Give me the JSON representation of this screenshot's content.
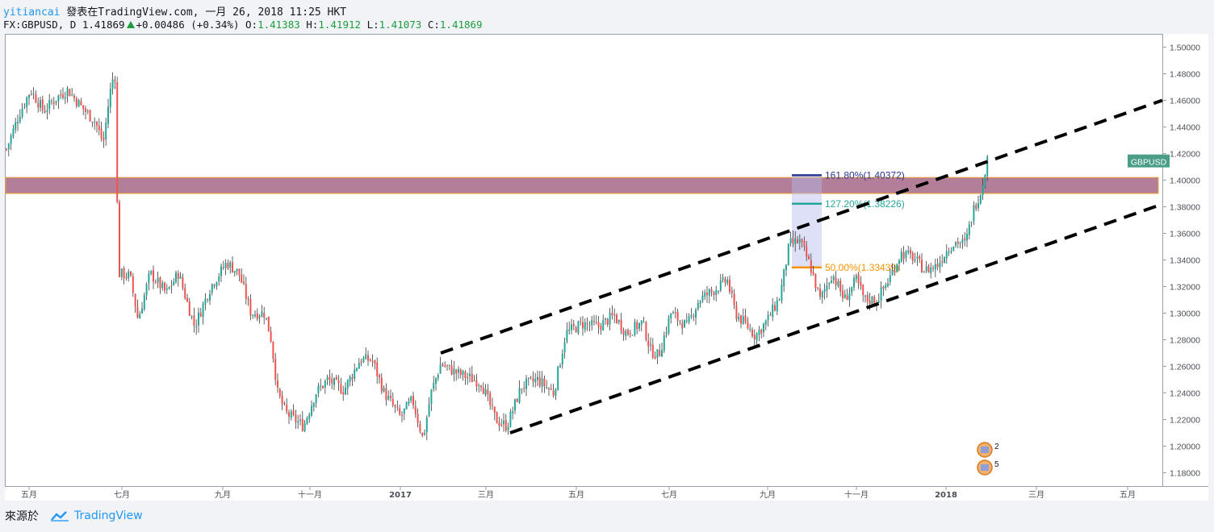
{
  "header": {
    "user": "yitiancai",
    "published": "發表在TradingView.com, 一月 26, 2018 11:25 HKT",
    "symbol": "FX:GBPUSD, D",
    "last": "1.41869",
    "change": "+0.00486 (+0.34%)",
    "open_label": "O:",
    "open": "1.41383",
    "high_label": "H:",
    "high": "1.41912",
    "low_label": "L:",
    "low": "1.41073",
    "close_label": "C:",
    "close": "1.41869"
  },
  "footer": {
    "source_label": "來源於",
    "brand": "TradingView"
  },
  "colors": {
    "up": "#26a69a",
    "down": "#ef5350",
    "zone": "#9e5a7a",
    "zone_border": "#f0a030",
    "fib_161": "#283593",
    "fib_127": "#26a69a",
    "fib_50": "#f59400"
  },
  "chart_data": {
    "type": "candlestick",
    "symbol_badge": "GBPUSD",
    "last_price": 1.41869,
    "ylim": [
      1.17,
      1.51
    ],
    "y_ticks": [
      1.18,
      1.2,
      1.22,
      1.24,
      1.26,
      1.28,
      1.3,
      1.32,
      1.34,
      1.36,
      1.38,
      1.4,
      1.42,
      1.44,
      1.46,
      1.48,
      1.5
    ],
    "x_ticks": [
      "五月",
      "七月",
      "九月",
      "十一月",
      "2017",
      "三月",
      "五月",
      "七月",
      "九月",
      "十一月",
      "2018",
      "三月",
      "五月"
    ],
    "bold_ticks": [
      "2017",
      "2018"
    ],
    "path_anchors": [
      [
        0,
        1.42
      ],
      [
        18,
        1.45
      ],
      [
        32,
        1.468
      ],
      [
        48,
        1.452
      ],
      [
        64,
        1.462
      ],
      [
        78,
        1.468
      ],
      [
        95,
        1.455
      ],
      [
        112,
        1.444
      ],
      [
        122,
        1.428
      ],
      [
        130,
        1.465
      ],
      [
        136,
        1.483
      ],
      [
        138,
        1.46
      ],
      [
        140,
        1.33
      ],
      [
        155,
        1.328
      ],
      [
        165,
        1.295
      ],
      [
        180,
        1.33
      ],
      [
        200,
        1.315
      ],
      [
        215,
        1.33
      ],
      [
        235,
        1.29
      ],
      [
        255,
        1.32
      ],
      [
        275,
        1.338
      ],
      [
        290,
        1.33
      ],
      [
        305,
        1.3
      ],
      [
        322,
        1.3
      ],
      [
        330,
        1.28
      ],
      [
        338,
        1.24
      ],
      [
        348,
        1.225
      ],
      [
        370,
        1.215
      ],
      [
        385,
        1.24
      ],
      [
        400,
        1.25
      ],
      [
        420,
        1.242
      ],
      [
        440,
        1.265
      ],
      [
        455,
        1.265
      ],
      [
        470,
        1.24
      ],
      [
        490,
        1.222
      ],
      [
        505,
        1.235
      ],
      [
        518,
        1.205
      ],
      [
        528,
        1.24
      ],
      [
        540,
        1.262
      ],
      [
        560,
        1.255
      ],
      [
        590,
        1.248
      ],
      [
        608,
        1.22
      ],
      [
        622,
        1.215
      ],
      [
        640,
        1.245
      ],
      [
        660,
        1.25
      ],
      [
        680,
        1.24
      ],
      [
        695,
        1.285
      ],
      [
        715,
        1.292
      ],
      [
        735,
        1.29
      ],
      [
        755,
        1.298
      ],
      [
        770,
        1.285
      ],
      [
        790,
        1.293
      ],
      [
        800,
        1.272
      ],
      [
        810,
        1.268
      ],
      [
        825,
        1.3
      ],
      [
        845,
        1.29
      ],
      [
        860,
        1.31
      ],
      [
        880,
        1.318
      ],
      [
        895,
        1.325
      ],
      [
        905,
        1.3
      ],
      [
        920,
        1.29
      ],
      [
        930,
        1.283
      ],
      [
        945,
        1.295
      ],
      [
        960,
        1.312
      ],
      [
        972,
        1.352
      ],
      [
        985,
        1.354
      ],
      [
        998,
        1.335
      ],
      [
        1010,
        1.31
      ],
      [
        1025,
        1.33
      ],
      [
        1040,
        1.31
      ],
      [
        1055,
        1.325
      ],
      [
        1065,
        1.31
      ],
      [
        1080,
        1.31
      ],
      [
        1095,
        1.325
      ],
      [
        1110,
        1.345
      ],
      [
        1125,
        1.342
      ],
      [
        1140,
        1.332
      ],
      [
        1155,
        1.336
      ],
      [
        1170,
        1.35
      ],
      [
        1180,
        1.354
      ],
      [
        1190,
        1.352
      ],
      [
        1200,
        1.378
      ],
      [
        1210,
        1.393
      ],
      [
        1215,
        1.41
      ],
      [
        1219,
        1.42
      ]
    ],
    "fib_levels": [
      {
        "label": "161.80%(1.40372)",
        "value": 1.40372
      },
      {
        "label": "127.20%(1.38226)",
        "value": 1.38226
      },
      {
        "label": "50.00%(1.33439)",
        "value": 1.33439
      }
    ],
    "resistance_zone": [
      1.39,
      1.402
    ],
    "channel_upper": [
      [
        540,
        1.27
      ],
      [
        1434,
        1.46
      ]
    ],
    "channel_lower": [
      [
        626,
        1.21
      ],
      [
        1434,
        1.382
      ]
    ],
    "event_markers": [
      {
        "count": "2"
      },
      {
        "count": "5"
      }
    ]
  }
}
